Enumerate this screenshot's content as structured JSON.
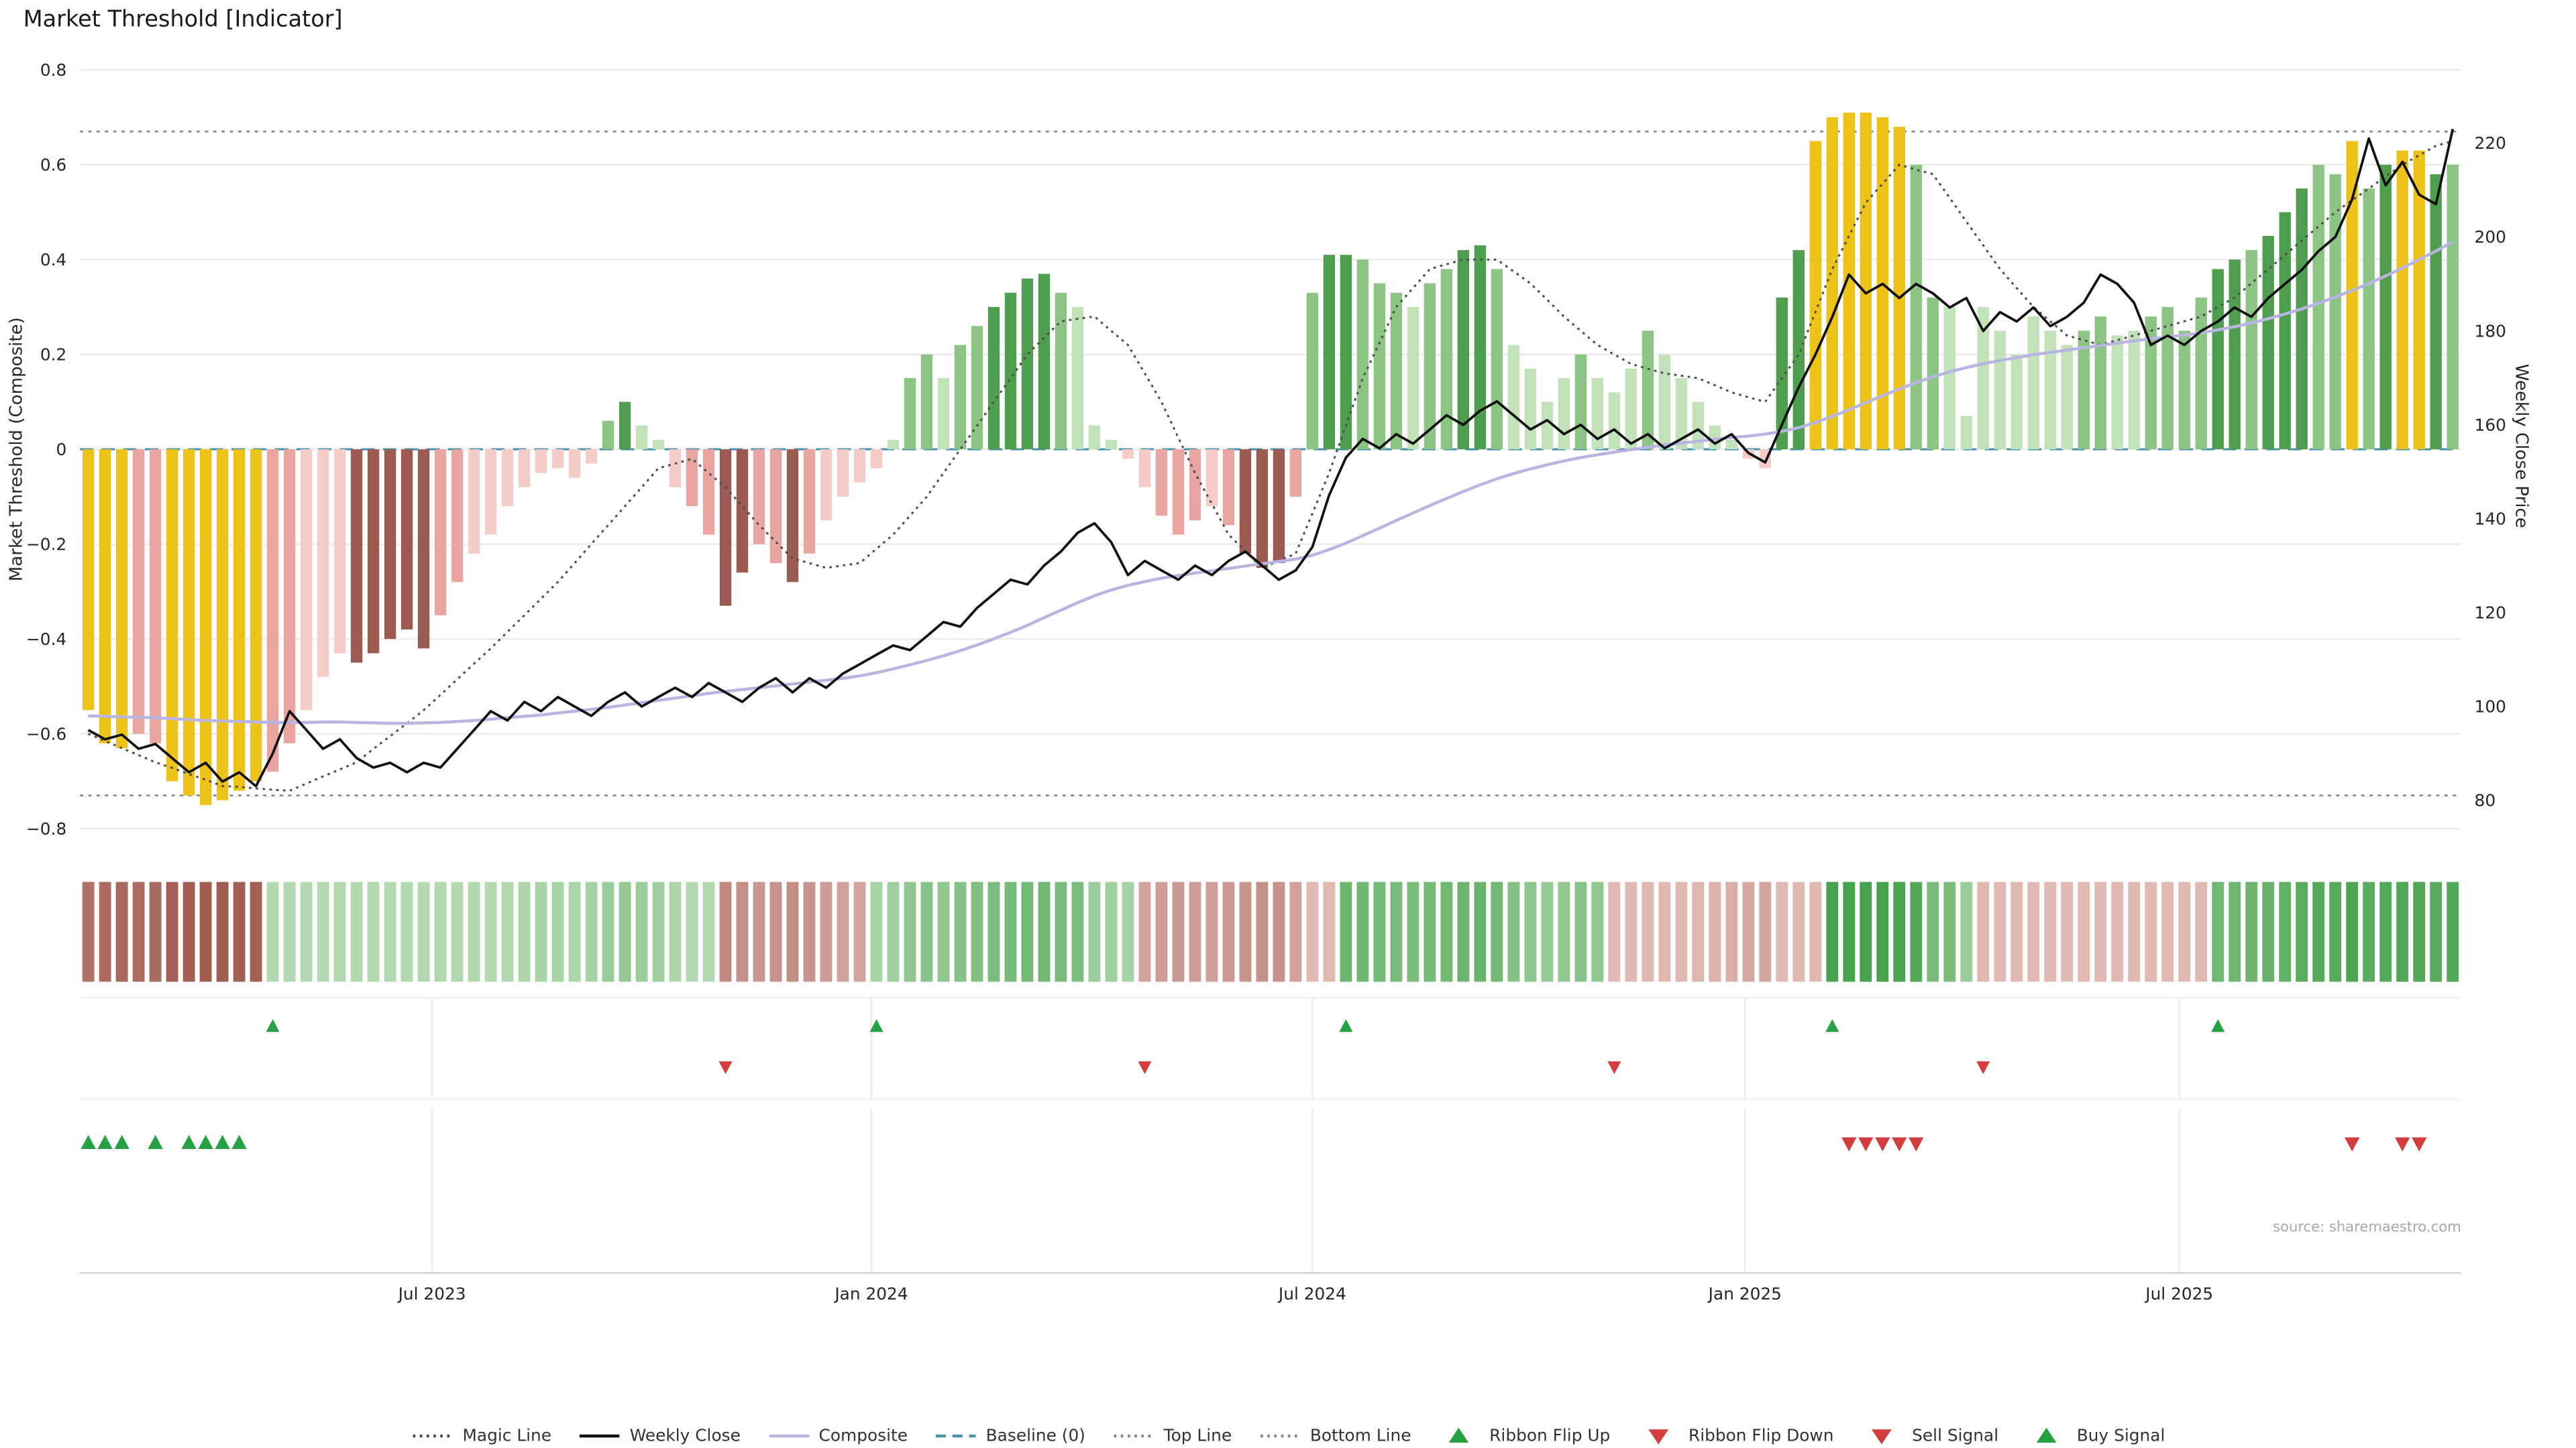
{
  "title": "Market Threshold [Indicator]",
  "source": "source: sharemaestro.com",
  "axes": {
    "left_label": "Market Threshold (Composite)",
    "right_label": "Weekly Close Price",
    "left_ticks": [
      {
        "v": 0.8,
        "label": "0.8"
      },
      {
        "v": 0.6,
        "label": "0.6"
      },
      {
        "v": 0.4,
        "label": "0.4"
      },
      {
        "v": 0.2,
        "label": "0.2"
      },
      {
        "v": 0.0,
        "label": "0"
      },
      {
        "v": -0.2,
        "label": "−0.2"
      },
      {
        "v": -0.4,
        "label": "−0.4"
      },
      {
        "v": -0.6,
        "label": "−0.6"
      },
      {
        "v": -0.8,
        "label": "−0.8"
      }
    ],
    "right_ticks": [
      220,
      200,
      180,
      160,
      140,
      120,
      100,
      80
    ],
    "x_ticks": [
      {
        "week": 20.5,
        "label": "Jul 2023"
      },
      {
        "week": 46.7,
        "label": "Jan 2024"
      },
      {
        "week": 73.0,
        "label": "Jul 2024"
      },
      {
        "week": 98.8,
        "label": "Jan 2025"
      },
      {
        "week": 124.7,
        "label": "Jul 2025"
      }
    ]
  },
  "colors": {
    "background": "#ffffff",
    "grid": "#ebebeb",
    "weekly_close": "#111111",
    "composite_line": "#b9b5e2",
    "magic_line": "#4d4d4d",
    "baseline": "#4a93ad",
    "top_bottom_line": "#8a8a8a",
    "signal_green": "#27a143",
    "signal_red": "#d43d3d",
    "ribbon_up_light": "#d8ecd2",
    "ribbon_up_dark": "#3f9e46",
    "ribbon_down_light": "#f5d9d5",
    "ribbon_down_dark": "#a05a4e",
    "bar_palette": {
      "gold": "#eec319",
      "pink": "#e9a59f",
      "pinkL": "#f4cdc9",
      "maroon": "#9c5b52",
      "green": "#8cc583",
      "greenL": "#c2e2ba",
      "greenD": "#4f9d4f"
    }
  },
  "legend": [
    {
      "label": "Magic Line",
      "marker": "dotted",
      "color": "#4d4d4d"
    },
    {
      "label": "Weekly Close",
      "marker": "solid",
      "color": "#111111"
    },
    {
      "label": "Composite",
      "marker": "solid",
      "color": "#b9b5e2"
    },
    {
      "label": "Baseline (0)",
      "marker": "dashed",
      "color": "#4a93ad"
    },
    {
      "label": "Top Line",
      "marker": "dotted",
      "color": "#8a8a8a"
    },
    {
      "label": "Bottom Line",
      "marker": "dotted",
      "color": "#8a8a8a"
    },
    {
      "label": "Ribbon Flip Up",
      "marker": "triangle-up",
      "color": "#27a143"
    },
    {
      "label": "Ribbon Flip Down",
      "marker": "triangle-down",
      "color": "#d43d3d"
    },
    {
      "label": "Sell Signal",
      "marker": "triangle-down",
      "color": "#d43d3d"
    },
    {
      "label": "Buy Signal",
      "marker": "triangle-up",
      "color": "#27a143"
    }
  ],
  "chart_data": {
    "type": "bar",
    "freq": "weekly",
    "n_weeks": 142,
    "left_ylim": [
      -0.8,
      0.8
    ],
    "right_ylim": [
      80,
      220
    ],
    "top_line": 0.67,
    "bottom_line": -0.73,
    "baseline": 0,
    "threshold": [
      -0.55,
      -0.62,
      -0.63,
      -0.6,
      -0.62,
      -0.7,
      -0.73,
      -0.75,
      -0.74,
      -0.72,
      -0.7,
      -0.68,
      -0.62,
      -0.55,
      -0.48,
      -0.43,
      -0.45,
      -0.43,
      -0.4,
      -0.38,
      -0.42,
      -0.35,
      -0.28,
      -0.22,
      -0.18,
      -0.12,
      -0.08,
      -0.05,
      -0.04,
      -0.06,
      -0.03,
      0.06,
      0.1,
      0.05,
      0.02,
      -0.08,
      -0.12,
      -0.18,
      -0.33,
      -0.26,
      -0.2,
      -0.24,
      -0.28,
      -0.22,
      -0.15,
      -0.1,
      -0.07,
      -0.04,
      0.02,
      0.15,
      0.2,
      0.15,
      0.22,
      0.26,
      0.3,
      0.33,
      0.36,
      0.37,
      0.33,
      0.3,
      0.05,
      0.02,
      -0.02,
      -0.08,
      -0.14,
      -0.18,
      -0.15,
      -0.12,
      -0.16,
      -0.22,
      -0.25,
      -0.24,
      -0.1,
      0.33,
      0.41,
      0.41,
      0.4,
      0.35,
      0.33,
      0.3,
      0.35,
      0.38,
      0.42,
      0.43,
      0.38,
      0.22,
      0.17,
      0.1,
      0.15,
      0.2,
      0.15,
      0.12,
      0.17,
      0.25,
      0.2,
      0.15,
      0.1,
      0.05,
      0.02,
      -0.02,
      -0.04,
      0.32,
      0.42,
      0.65,
      0.7,
      0.71,
      0.71,
      0.7,
      0.68,
      0.6,
      0.32,
      0.3,
      0.07,
      0.3,
      0.25,
      0.2,
      0.28,
      0.25,
      0.22,
      0.25,
      0.28,
      0.24,
      0.25,
      0.28,
      0.3,
      0.25,
      0.32,
      0.38,
      0.4,
      0.42,
      0.45,
      0.5,
      0.55,
      0.6,
      0.58,
      0.65,
      0.55,
      0.6,
      0.63,
      0.63,
      0.58,
      0.6
    ],
    "bar_colors": [
      "gold",
      "gold",
      "gold",
      "pink",
      "pink",
      "gold",
      "gold",
      "gold",
      "gold",
      "gold",
      "gold",
      "pink",
      "pink",
      "pinkL",
      "pinkL",
      "pinkL",
      "maroon",
      "maroon",
      "maroon",
      "maroon",
      "maroon",
      "pink",
      "pink",
      "pinkL",
      "pinkL",
      "pinkL",
      "pinkL",
      "pinkL",
      "pinkL",
      "pinkL",
      "pinkL",
      "green",
      "greenD",
      "greenL",
      "greenL",
      "pinkL",
      "pink",
      "pink",
      "maroon",
      "maroon",
      "pink",
      "pink",
      "maroon",
      "pink",
      "pinkL",
      "pinkL",
      "pinkL",
      "pinkL",
      "greenL",
      "green",
      "green",
      "greenL",
      "green",
      "green",
      "greenD",
      "greenD",
      "greenD",
      "greenD",
      "green",
      "greenL",
      "greenL",
      "greenL",
      "pinkL",
      "pinkL",
      "pink",
      "pink",
      "pink",
      "pinkL",
      "pink",
      "maroon",
      "maroon",
      "maroon",
      "pink",
      "green",
      "greenD",
      "greenD",
      "green",
      "green",
      "green",
      "greenL",
      "green",
      "green",
      "greenD",
      "greenD",
      "green",
      "greenL",
      "greenL",
      "greenL",
      "greenL",
      "green",
      "greenL",
      "greenL",
      "greenL",
      "green",
      "greenL",
      "greenL",
      "greenL",
      "greenL",
      "greenL",
      "pinkL",
      "pinkL",
      "greenD",
      "greenD",
      "gold",
      "gold",
      "gold",
      "gold",
      "gold",
      "gold",
      "green",
      "green",
      "greenL",
      "greenL",
      "greenL",
      "greenL",
      "greenL",
      "greenL",
      "greenL",
      "greenL",
      "green",
      "green",
      "greenL",
      "greenL",
      "green",
      "green",
      "green",
      "green",
      "greenD",
      "greenD",
      "green",
      "greenD",
      "greenD",
      "greenD",
      "green",
      "green",
      "gold",
      "green",
      "greenD",
      "gold",
      "gold",
      "greenD",
      "green"
    ],
    "magic_line": [
      -0.6,
      -0.615,
      -0.63,
      -0.645,
      -0.66,
      -0.672,
      -0.685,
      -0.697,
      -0.71,
      -0.712,
      -0.715,
      -0.718,
      -0.72,
      -0.705,
      -0.69,
      -0.675,
      -0.66,
      -0.632,
      -0.605,
      -0.578,
      -0.55,
      -0.518,
      -0.485,
      -0.452,
      -0.42,
      -0.385,
      -0.35,
      -0.315,
      -0.28,
      -0.24,
      -0.2,
      -0.16,
      -0.12,
      -0.08,
      -0.04,
      -0.03,
      -0.02,
      -0.05,
      -0.08,
      -0.12,
      -0.16,
      -0.195,
      -0.23,
      -0.24,
      -0.25,
      -0.245,
      -0.24,
      -0.21,
      -0.18,
      -0.14,
      -0.1,
      -0.05,
      0.0,
      0.05,
      0.1,
      0.15,
      0.2,
      0.235,
      0.27,
      0.275,
      0.28,
      0.25,
      0.22,
      0.16,
      0.1,
      0.025,
      -0.05,
      -0.115,
      -0.18,
      -0.215,
      -0.25,
      -0.235,
      -0.22,
      -0.135,
      -0.05,
      0.05,
      0.15,
      0.225,
      0.3,
      0.34,
      0.38,
      0.39,
      0.4,
      0.4,
      0.4,
      0.375,
      0.35,
      0.315,
      0.28,
      0.25,
      0.22,
      0.2,
      0.18,
      0.17,
      0.16,
      0.155,
      0.15,
      0.135,
      0.12,
      0.11,
      0.1,
      0.15,
      0.2,
      0.29,
      0.38,
      0.45,
      0.52,
      0.56,
      0.6,
      0.59,
      0.58,
      0.53,
      0.48,
      0.43,
      0.38,
      0.34,
      0.3,
      0.27,
      0.24,
      0.23,
      0.22,
      0.23,
      0.24,
      0.25,
      0.26,
      0.27,
      0.28,
      0.3,
      0.32,
      0.35,
      0.38,
      0.41,
      0.44,
      0.47,
      0.5,
      0.525,
      0.55,
      0.575,
      0.6,
      0.62,
      0.64,
      0.65
    ],
    "weekly_close": [
      95,
      93,
      94,
      91,
      92,
      89,
      86,
      88,
      84,
      86,
      83,
      90,
      99,
      95,
      91,
      93,
      89,
      87,
      88,
      86,
      88,
      87,
      91,
      95,
      99,
      97,
      101,
      99,
      102,
      100,
      98,
      101,
      103,
      100,
      102,
      104,
      102,
      105,
      103,
      101,
      104,
      106,
      103,
      106,
      104,
      107,
      109,
      111,
      113,
      112,
      115,
      118,
      117,
      121,
      124,
      127,
      126,
      130,
      133,
      137,
      139,
      135,
      128,
      131,
      129,
      127,
      130,
      128,
      131,
      133,
      130,
      127,
      129,
      134,
      145,
      153,
      157,
      155,
      158,
      156,
      159,
      162,
      160,
      163,
      165,
      162,
      159,
      161,
      158,
      160,
      157,
      159,
      156,
      158,
      155,
      157,
      159,
      156,
      158,
      154,
      152,
      160,
      168,
      175,
      183,
      192,
      188,
      190,
      187,
      190,
      188,
      185,
      187,
      180,
      184,
      182,
      185,
      181,
      183,
      186,
      192,
      190,
      186,
      177,
      179,
      177,
      180,
      182,
      185,
      183,
      187,
      190,
      193,
      197,
      200,
      208,
      221,
      211,
      216,
      209,
      207,
      223
    ],
    "composite": [
      98.0,
      97.9,
      97.8,
      97.7,
      97.6,
      97.4,
      97.2,
      97.0,
      96.9,
      96.8,
      96.7,
      96.6,
      96.6,
      96.6,
      96.7,
      96.7,
      96.6,
      96.5,
      96.4,
      96.4,
      96.5,
      96.6,
      96.8,
      97.0,
      97.3,
      97.6,
      97.9,
      98.2,
      98.6,
      99.0,
      99.4,
      99.8,
      100.3,
      100.8,
      101.3,
      101.8,
      102.3,
      102.8,
      103.2,
      103.6,
      104.0,
      104.4,
      104.8,
      105.2,
      105.6,
      106.0,
      106.5,
      107.2,
      108.0,
      108.9,
      109.8,
      110.8,
      111.9,
      113.1,
      114.4,
      115.8,
      117.3,
      118.9,
      120.5,
      122.1,
      123.6,
      124.8,
      125.8,
      126.6,
      127.3,
      127.9,
      128.4,
      128.9,
      129.4,
      129.9,
      130.4,
      130.9,
      131.4,
      132.2,
      133.4,
      134.8,
      136.4,
      138.0,
      139.6,
      141.2,
      142.8,
      144.3,
      145.8,
      147.2,
      148.5,
      149.6,
      150.6,
      151.5,
      152.3,
      153.0,
      153.6,
      154.2,
      154.7,
      155.2,
      155.7,
      156.1,
      156.5,
      156.9,
      157.3,
      157.6,
      158.0,
      158.6,
      159.4,
      160.5,
      161.8,
      163.2,
      164.7,
      166.2,
      167.6,
      169.0,
      170.2,
      171.3,
      172.2,
      173.0,
      173.7,
      174.3,
      174.9,
      175.4,
      175.9,
      176.4,
      176.9,
      177.4,
      177.9,
      178.3,
      178.7,
      179.1,
      179.6,
      180.2,
      180.9,
      181.7,
      182.6,
      183.6,
      184.7,
      185.9,
      187.2,
      188.6,
      190.1,
      191.7,
      193.4,
      195.2,
      197.0,
      199.0
    ],
    "ribbon": {
      "flips": [
        {
          "week": 0,
          "dir": "down"
        },
        {
          "week": 11,
          "dir": "up"
        },
        {
          "week": 38,
          "dir": "down"
        },
        {
          "week": 47,
          "dir": "up"
        },
        {
          "week": 63,
          "dir": "down"
        },
        {
          "week": 75,
          "dir": "up"
        },
        {
          "week": 91,
          "dir": "down"
        },
        {
          "week": 104,
          "dir": "up"
        },
        {
          "week": 113,
          "dir": "down"
        },
        {
          "week": 127,
          "dir": "up"
        }
      ]
    },
    "signals": {
      "ribbon_flip_up_weeks": [
        11,
        47,
        75,
        104,
        127
      ],
      "ribbon_flip_down_weeks": [
        38,
        63,
        91,
        113
      ],
      "buy_weeks": [
        0,
        1,
        2,
        4,
        6,
        7,
        8,
        9
      ],
      "sell_weeks": [
        105,
        106,
        107,
        108,
        109,
        135,
        138,
        139
      ]
    }
  }
}
